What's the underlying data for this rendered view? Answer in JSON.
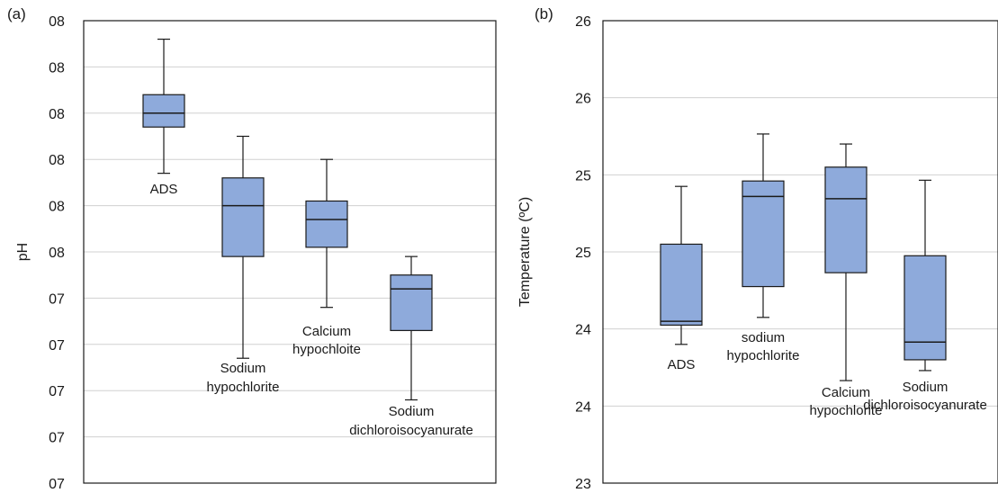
{
  "chart_data": [
    {
      "type": "box",
      "panel_label": "(a)",
      "ylabel": "pH",
      "y_tick_labels": [
        "07",
        "07",
        "07",
        "07",
        "07",
        "08",
        "08",
        "08",
        "08",
        "08",
        "08"
      ],
      "ylim": [
        0,
        10
      ],
      "grid": true,
      "categories": [
        {
          "label_lines": [
            "ADS"
          ],
          "min": 6.7,
          "q1": 7.7,
          "median": 8.0,
          "q3": 8.4,
          "max": 9.6
        },
        {
          "label_lines": [
            "Sodium",
            "hypochlorite"
          ],
          "min": 2.7,
          "q1": 4.9,
          "median": 6.0,
          "q3": 6.6,
          "max": 7.5
        },
        {
          "label_lines": [
            "Calcium",
            "hypochloite"
          ],
          "min": 3.8,
          "q1": 5.1,
          "median": 5.7,
          "q3": 6.1,
          "max": 7.0
        },
        {
          "label_lines": [
            "Sodium",
            "dichloroisocyanurate"
          ],
          "min": 1.8,
          "q1": 3.3,
          "median": 4.2,
          "q3": 4.5,
          "max": 4.9
        }
      ]
    },
    {
      "type": "box",
      "panel_label": "(b)",
      "ylabel": "Temperature (ºC)",
      "y_tick_labels": [
        "23",
        "24",
        "24",
        "25",
        "25",
        "26",
        "26"
      ],
      "ylim": [
        0,
        6
      ],
      "grid": true,
      "categories": [
        {
          "label_lines": [
            "ADS"
          ],
          "min": 1.8,
          "q1": 2.05,
          "median": 2.1,
          "q3": 3.1,
          "max": 3.85
        },
        {
          "label_lines": [
            "sodium",
            "hypochlorite"
          ],
          "min": 2.15,
          "q1": 2.55,
          "median": 3.72,
          "q3": 3.92,
          "max": 4.53
        },
        {
          "label_lines": [
            "Calcium",
            "hypochlorite"
          ],
          "min": 1.33,
          "q1": 2.73,
          "median": 3.69,
          "q3": 4.1,
          "max": 4.4
        },
        {
          "label_lines": [
            "Sodium",
            "dichloroisocyanurate"
          ],
          "min": 1.46,
          "q1": 1.6,
          "median": 1.83,
          "q3": 2.95,
          "max": 3.93
        }
      ]
    }
  ]
}
